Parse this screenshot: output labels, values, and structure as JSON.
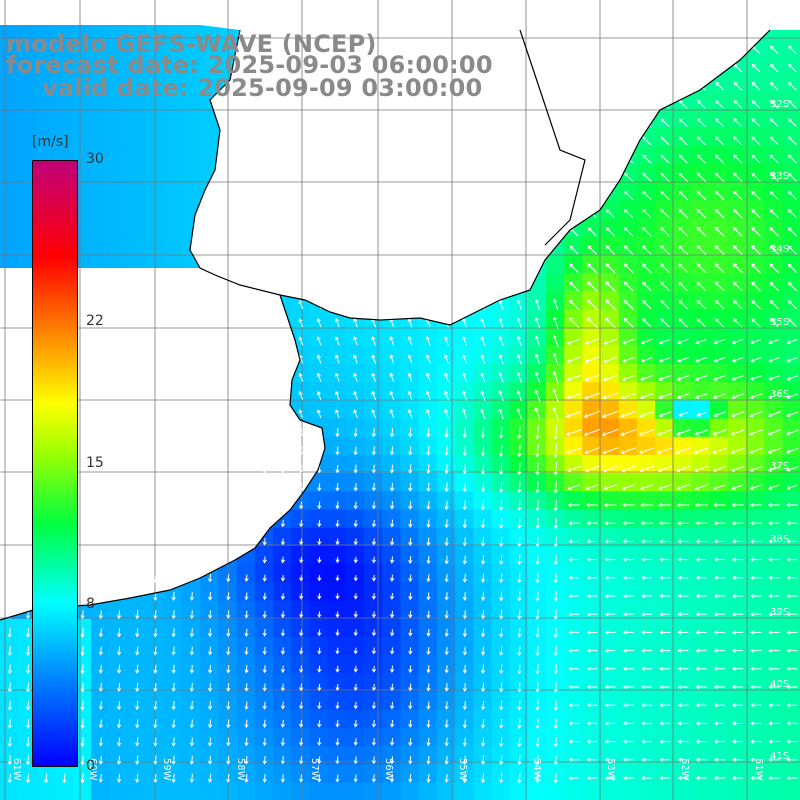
{
  "title": {
    "model": "modelo GEFS-WAVE (NCEP)",
    "forecast": "forecast date: 2025-09-03 06:00:00",
    "valid": "valid date: 2025-09-09 03:00:00"
  },
  "colorbar": {
    "units": "[m/s]",
    "ticks": [
      "30",
      "22",
      "15",
      "8",
      "0"
    ],
    "tick_values": [
      30,
      22,
      15,
      8,
      0
    ],
    "range": [
      0,
      30
    ],
    "colors": [
      "#0000ff",
      "#00a0ff",
      "#00ffff",
      "#00ff00",
      "#ffff00",
      "#ff8000",
      "#ff0000",
      "#c0006a"
    ]
  },
  "map": {
    "lat_labels": [
      "32S",
      "33S",
      "34S",
      "35S",
      "36S",
      "37S",
      "38S",
      "39S",
      "40S",
      "41S"
    ],
    "lon_labels": [
      "61W",
      "60W",
      "59W",
      "58W",
      "57W",
      "56W",
      "55W",
      "54W",
      "53W",
      "52W",
      "51W"
    ],
    "lon_range": [
      -61.5,
      -50.7
    ],
    "lat_range": [
      -41.5,
      -31.0
    ],
    "grid": true,
    "land_color": "#ffffff",
    "coast_color": "#000000"
  }
}
